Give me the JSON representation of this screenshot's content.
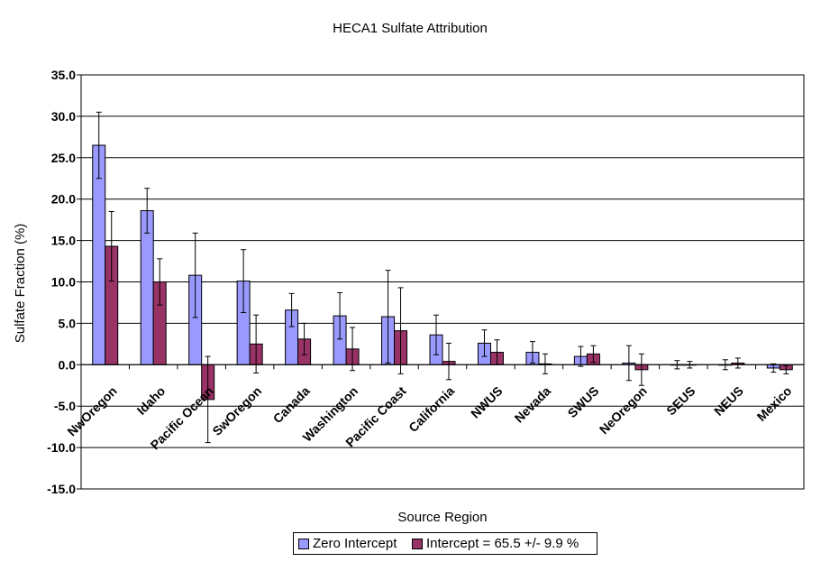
{
  "chart_data": {
    "type": "bar",
    "title": "HECA1 Sulfate Attribution",
    "xlabel": "Source Region",
    "ylabel": "Sulfate Fraction (%)",
    "ylim": [
      -15,
      35
    ],
    "ytick_step": 5,
    "ytick_labels": [
      "-15.0",
      "-10.0",
      "-5.0",
      "0.0",
      "5.0",
      "10.0",
      "15.0",
      "20.0",
      "25.0",
      "30.0",
      "35.0"
    ],
    "grid": true,
    "legend_position": "bottom",
    "categories": [
      "NwOregon",
      "Idaho",
      "Pacific Ocean",
      "SwOregon",
      "Canada",
      "Washington",
      "Pacific Coast",
      "California",
      "NWUS",
      "Nevada",
      "SWUS",
      "NeOregon",
      "SEUS",
      "NEUS",
      "Mexico"
    ],
    "series": [
      {
        "name": "Zero Intercept",
        "color": "#9999ff",
        "values": [
          26.5,
          18.6,
          10.8,
          10.1,
          6.6,
          5.9,
          5.8,
          3.6,
          2.6,
          1.5,
          1.0,
          0.2,
          0.0,
          0.0,
          -0.4
        ],
        "errors": [
          4.0,
          2.7,
          5.1,
          3.8,
          2.0,
          2.8,
          5.6,
          2.4,
          1.6,
          1.3,
          1.2,
          2.1,
          0.5,
          0.6,
          0.5
        ]
      },
      {
        "name": "Intercept = 65.5 +/- 9.9 %",
        "color": "#993366",
        "values": [
          14.3,
          10.0,
          -4.2,
          2.5,
          3.1,
          1.9,
          4.1,
          0.4,
          1.5,
          0.1,
          1.3,
          -0.6,
          0.0,
          0.2,
          -0.6
        ],
        "errors": [
          4.2,
          2.8,
          5.2,
          3.5,
          1.9,
          2.6,
          5.2,
          2.2,
          1.5,
          1.2,
          1.0,
          1.9,
          0.4,
          0.6,
          0.5
        ]
      }
    ]
  }
}
